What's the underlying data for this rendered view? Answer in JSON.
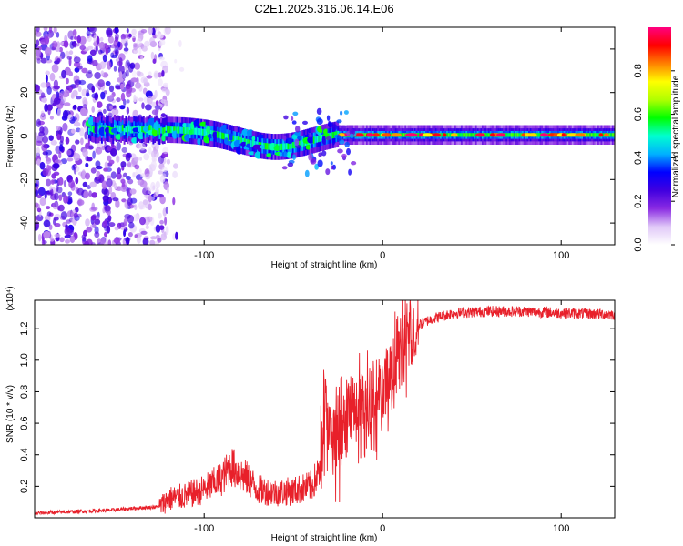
{
  "title": "C2E1.2025.316.06.14.E06",
  "chart_data": [
    {
      "type": "heatmap",
      "name": "spectrogram",
      "xlabel": "Height of straight line (km)",
      "ylabel": "Frequency (Hz)",
      "xlim": [
        -195,
        130
      ],
      "ylim": [
        -50,
        50
      ],
      "xticks": [
        -100,
        0,
        100
      ],
      "xtick_labels": [
        "-100",
        "0",
        "100"
      ],
      "yticks": [
        -40,
        -20,
        0,
        20,
        40
      ],
      "ytick_labels": [
        "-40",
        "-20",
        "0",
        "20",
        "40"
      ],
      "colorbar": {
        "label": "Normalized spectral amplitude",
        "range": [
          0.0,
          1.0
        ],
        "ticks": [
          0.0,
          0.2,
          0.4,
          0.6,
          0.8
        ],
        "tick_labels": [
          "0.0",
          "0.2",
          "0.4",
          "0.6",
          "0.8"
        ],
        "colormap": [
          "#ffffff",
          "#e0c8f8",
          "#8a2be2",
          "#4000e0",
          "#0000ff",
          "#00b0ff",
          "#00ffd0",
          "#00ff00",
          "#b0ff00",
          "#ffff00",
          "#ff8000",
          "#ff0000",
          "#ff0080"
        ]
      },
      "features": {
        "noise_region_x": [
          -195,
          -120
        ],
        "carrier_frequency_hz": 0,
        "carrier_from_x": -165,
        "carrier_dip_center_x": -60,
        "carrier_dip_min_hz": -5,
        "strong_carrier_from_x": -25
      }
    },
    {
      "type": "line",
      "name": "snr",
      "xlabel": "Height of straight line (km)",
      "ylabel": "SNR (10 * v/v)",
      "y_exponent_label": "(x10⁴)",
      "xlim": [
        -195,
        130
      ],
      "ylim": [
        0,
        1.38
      ],
      "xticks": [
        -100,
        0,
        100
      ],
      "xtick_labels": [
        "-100",
        "0",
        "100"
      ],
      "yticks": [
        0.2,
        0.4,
        0.6,
        0.8,
        1.0,
        1.2
      ],
      "ytick_labels": [
        "0.2",
        "0.4",
        "0.6",
        "0.8",
        "1.0",
        "1.2"
      ],
      "color": "#e8202a",
      "series": [
        {
          "name": "SNR",
          "x": [
            -195,
            -170,
            -150,
            -140,
            -125,
            -120,
            -110,
            -100,
            -90,
            -85,
            -80,
            -75,
            -70,
            -60,
            -50,
            -40,
            -35,
            -32,
            -30,
            -28,
            -25,
            -22,
            -20,
            -15,
            -10,
            -5,
            0,
            5,
            10,
            15,
            20,
            25,
            30,
            40,
            60,
            80,
            100,
            130
          ],
          "values": [
            0.03,
            0.04,
            0.05,
            0.06,
            0.07,
            0.12,
            0.14,
            0.18,
            0.25,
            0.33,
            0.28,
            0.24,
            0.18,
            0.16,
            0.17,
            0.2,
            0.3,
            0.75,
            0.55,
            0.5,
            0.45,
            0.55,
            0.62,
            0.68,
            0.72,
            0.74,
            0.76,
            0.9,
            1.05,
            1.15,
            1.22,
            1.25,
            1.27,
            1.3,
            1.31,
            1.31,
            1.3,
            1.29
          ]
        }
      ]
    }
  ]
}
